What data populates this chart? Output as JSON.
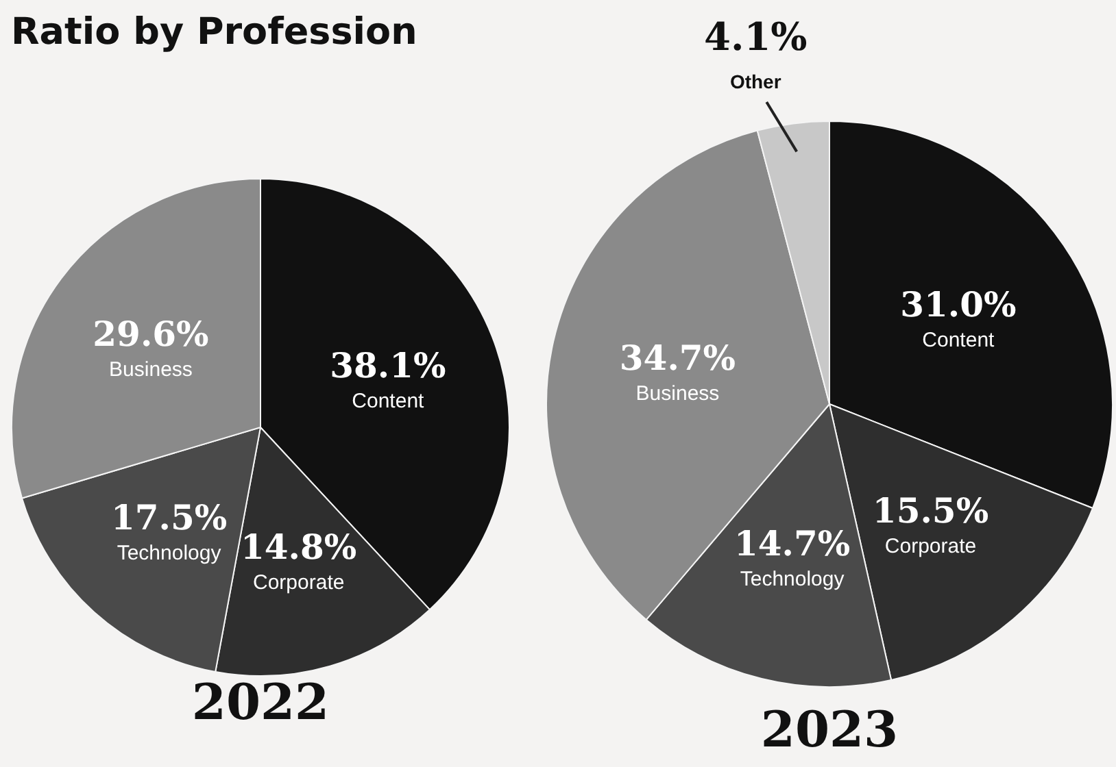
{
  "chart_data": [
    {
      "type": "pie",
      "title": "Ratio by Profession",
      "annotations": [
        "2022"
      ],
      "categories": [
        "Content",
        "Corporate",
        "Technology",
        "Business"
      ],
      "values": [
        38.1,
        14.8,
        17.5,
        29.6
      ],
      "colors": [
        "#111111",
        "#2e2e2e",
        "#4a4a4a",
        "#8a8a8a"
      ],
      "value_labels": [
        "38.1%",
        "14.8%",
        "17.5%",
        "29.6%"
      ],
      "legend": false
    },
    {
      "type": "pie",
      "annotations": [
        "2023"
      ],
      "categories": [
        "Content",
        "Corporate",
        "Technology",
        "Business",
        "Other"
      ],
      "values": [
        31.0,
        15.5,
        14.7,
        34.7,
        4.1
      ],
      "colors": [
        "#111111",
        "#2e2e2e",
        "#4a4a4a",
        "#8a8a8a",
        "#c8c8c8"
      ],
      "value_labels": [
        "31.0%",
        "15.5%",
        "14.7%",
        "34.7%",
        "4.1%"
      ],
      "legend": false
    }
  ]
}
